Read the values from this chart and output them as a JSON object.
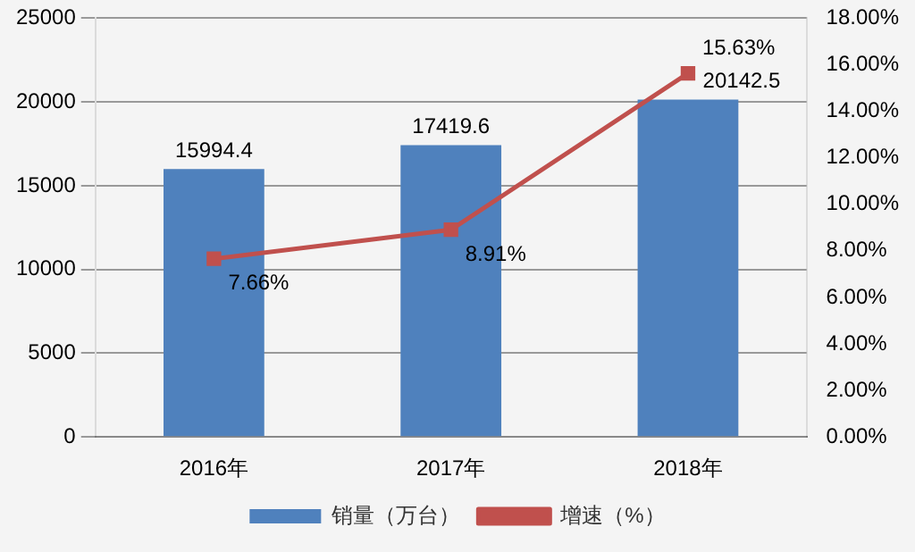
{
  "chart_data": {
    "type": "bar",
    "categories": [
      "2016年",
      "2017年",
      "2018年"
    ],
    "series": [
      {
        "name": "销量（万台）",
        "color": "#4f81bd",
        "values": [
          15994.4,
          17419.6,
          20142.5
        ],
        "value_labels": [
          "15994.4",
          "17419.6",
          "20142.5"
        ]
      },
      {
        "name": "增速（%）",
        "type": "line",
        "axis": "y2",
        "color": "#c0504d",
        "values": [
          7.66,
          8.91,
          15.63
        ],
        "value_labels": [
          "7.66%",
          "8.91%",
          "15.63%"
        ]
      }
    ],
    "ylim": [
      0,
      25000
    ],
    "yticks": [
      0,
      5000,
      10000,
      15000,
      20000,
      25000
    ],
    "y2lim": [
      0,
      18
    ],
    "y2ticks": [
      {
        "value": 0,
        "label": "0.00%"
      },
      {
        "value": 2,
        "label": "2.00%"
      },
      {
        "value": 4,
        "label": "4.00%"
      },
      {
        "value": 6,
        "label": "6.00%"
      },
      {
        "value": 8,
        "label": "8.00%"
      },
      {
        "value": 10,
        "label": "10.00%"
      },
      {
        "value": 12,
        "label": "12.00%"
      },
      {
        "value": 14,
        "label": "14.00%"
      },
      {
        "value": 16,
        "label": "16.00%"
      },
      {
        "value": 18,
        "label": "18.00%"
      }
    ],
    "grid": "y",
    "legend": "bottom",
    "marker": "square",
    "line_style": "solid"
  }
}
